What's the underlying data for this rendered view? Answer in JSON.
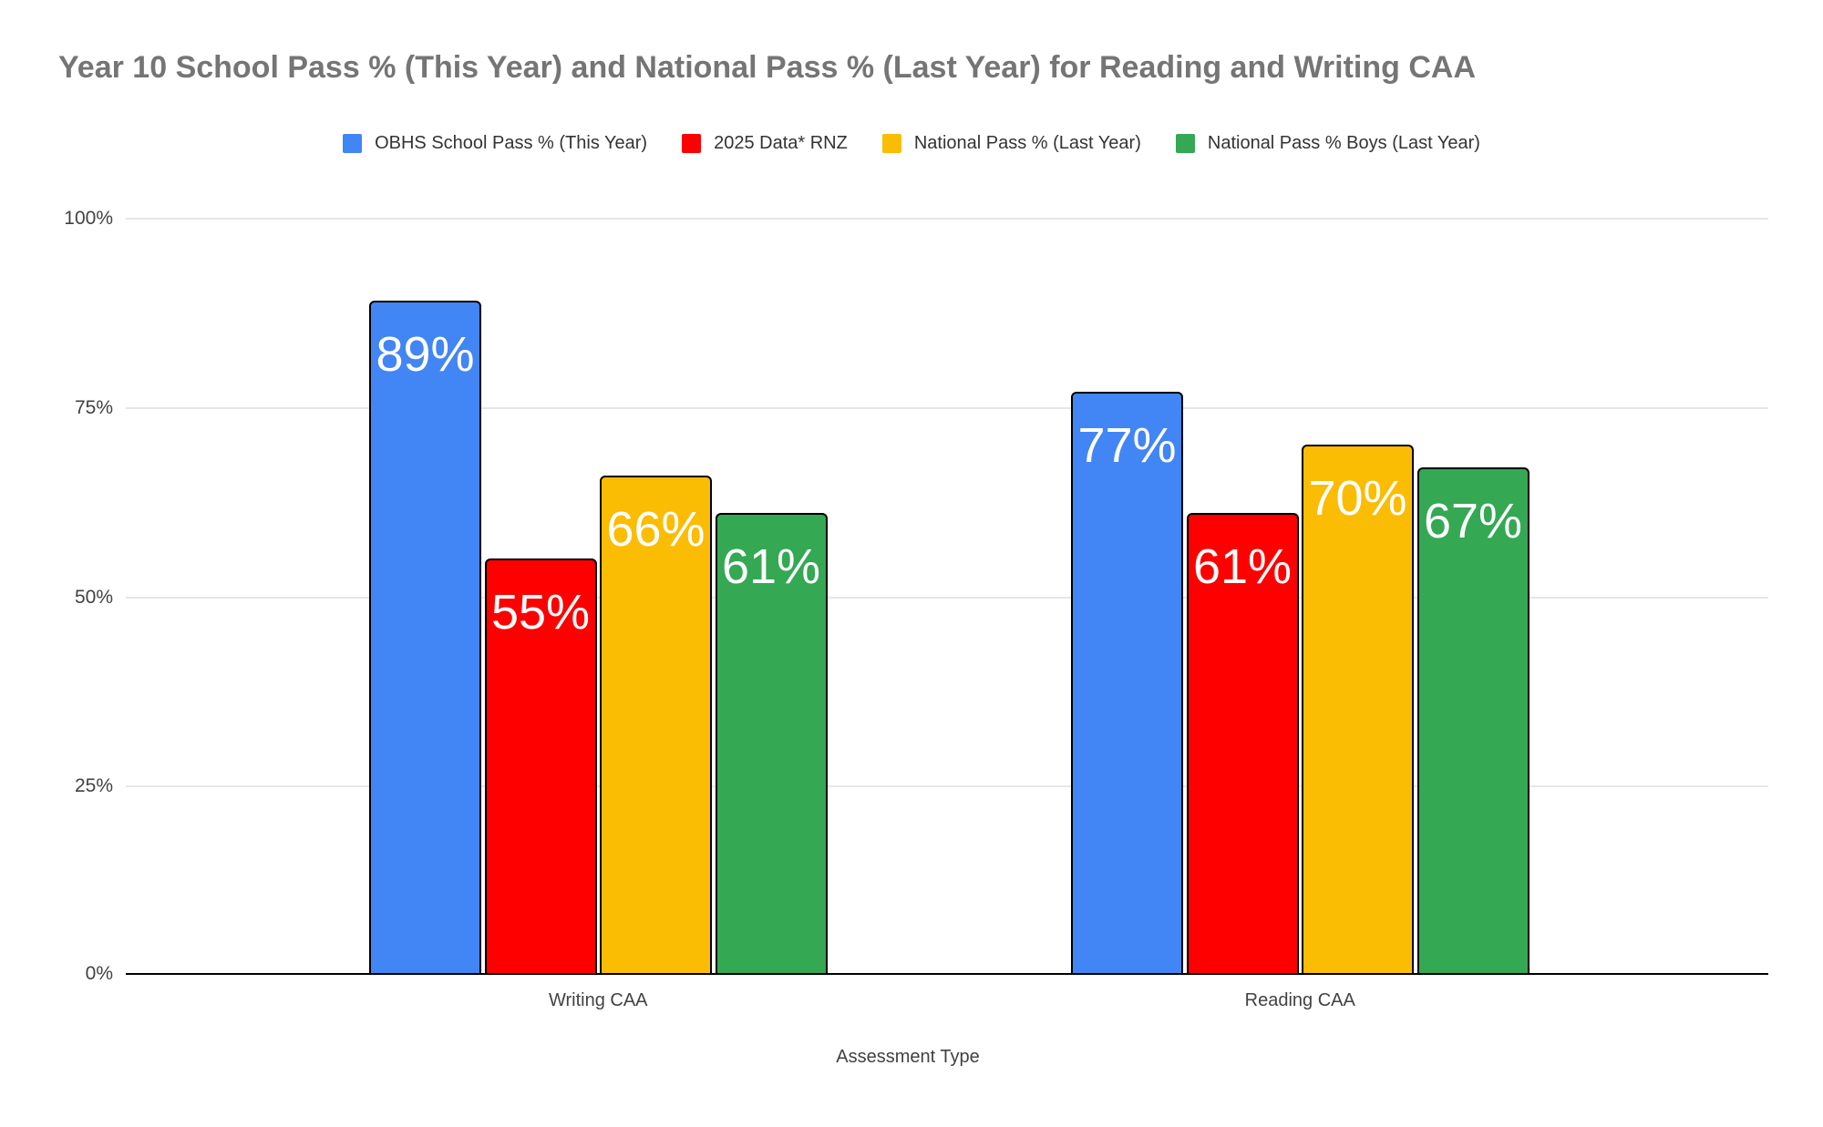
{
  "page": {
    "background": "#ffffff"
  },
  "chart_data": {
    "type": "bar",
    "title": "Year 10 School Pass % (This Year) and National Pass % (Last Year) for Reading and Writing CAA",
    "xlabel": "Assessment Type",
    "ylabel": "",
    "categories": [
      "Writing CAA",
      "Reading CAA"
    ],
    "series": [
      {
        "name": "OBHS School Pass % (This Year)",
        "color": "#4285F4",
        "values": [
          89,
          77
        ]
      },
      {
        "name": "2025 Data* RNZ",
        "color": "#FF0000",
        "values": [
          55,
          61
        ]
      },
      {
        "name": "National Pass % (Last Year)",
        "color": "#FBBC04",
        "values": [
          66,
          70
        ]
      },
      {
        "name": "National Pass % Boys (Last Year)",
        "color": "#34A853",
        "values": [
          61,
          67
        ]
      }
    ],
    "data_labels": {
      "format": "value + %",
      "color": "#ffffff",
      "position": "inside-top"
    },
    "ylim": [
      0,
      100
    ],
    "yticks": [
      0,
      25,
      50,
      75,
      100
    ],
    "ytick_suffix": "%",
    "grid": true,
    "legend_position": "top",
    "bar_border_color": "#000000",
    "colors": {
      "title_text": "#757575",
      "legend_text": "#333333",
      "axis_text": "#424242",
      "gridline": "#e6e6e6",
      "baseline": "#000000"
    }
  }
}
